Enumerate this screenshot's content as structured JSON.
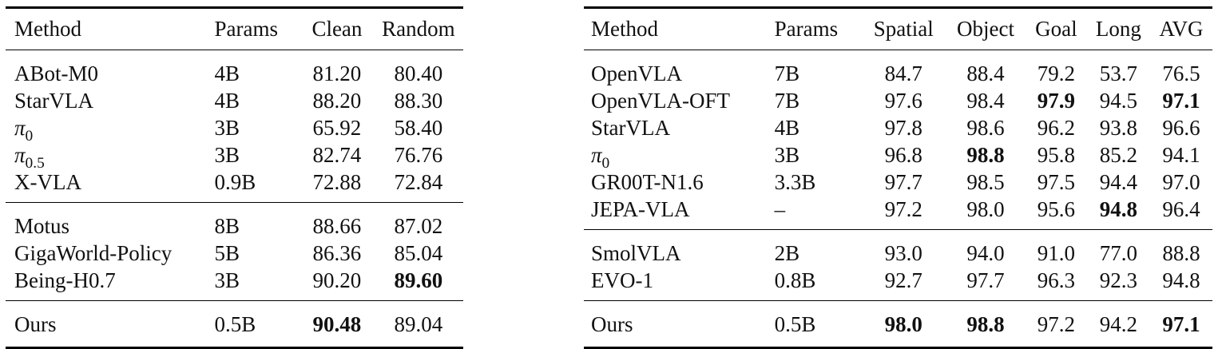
{
  "left_table": {
    "headers": [
      "Method",
      "Params",
      "Clean",
      "Random"
    ],
    "groups": [
      [
        {
          "method": "ABot-M0",
          "params": "4B",
          "clean": "81.20",
          "random": "80.40"
        },
        {
          "method": "StarVLA",
          "params": "4B",
          "clean": "88.20",
          "random": "88.30"
        },
        {
          "method": "π",
          "method_sub": "0",
          "params": "3B",
          "clean": "65.92",
          "random": "58.40"
        },
        {
          "method": "π",
          "method_sub": "0.5",
          "params": "3B",
          "clean": "82.74",
          "random": "76.76"
        },
        {
          "method": "X-VLA",
          "params": "0.9B",
          "clean": "72.88",
          "random": "72.84"
        }
      ],
      [
        {
          "method": "Motus",
          "params": "8B",
          "clean": "88.66",
          "random": "87.02"
        },
        {
          "method": "GigaWorld-Policy",
          "params": "5B",
          "clean": "86.36",
          "random": "85.04"
        },
        {
          "method": "Being-H0.7",
          "params": "3B",
          "clean": "90.20",
          "random": "89.60"
        }
      ],
      [
        {
          "method": "Ours",
          "params": "0.5B",
          "clean": "90.48",
          "random": "89.04"
        }
      ]
    ]
  },
  "right_table": {
    "headers": [
      "Method",
      "Params",
      "Spatial",
      "Object",
      "Goal",
      "Long",
      "AVG"
    ],
    "groups": [
      [
        {
          "method": "OpenVLA",
          "params": "7B",
          "spatial": "84.7",
          "object": "88.4",
          "goal": "79.2",
          "long": "53.7",
          "avg": "76.5"
        },
        {
          "method": "OpenVLA-OFT",
          "params": "7B",
          "spatial": "97.6",
          "object": "98.4",
          "goal": "97.9",
          "long": "94.5",
          "avg": "97.1"
        },
        {
          "method": "StarVLA",
          "params": "4B",
          "spatial": "97.8",
          "object": "98.6",
          "goal": "96.2",
          "long": "93.8",
          "avg": "96.6"
        },
        {
          "method": "π",
          "method_sub": "0",
          "params": "3B",
          "spatial": "96.8",
          "object": "98.8",
          "goal": "95.8",
          "long": "85.2",
          "avg": "94.1"
        },
        {
          "method": "GR00T-N1.6",
          "params": "3.3B",
          "spatial": "97.7",
          "object": "98.5",
          "goal": "97.5",
          "long": "94.4",
          "avg": "97.0"
        },
        {
          "method": "JEPA-VLA",
          "params": "–",
          "spatial": "97.2",
          "object": "98.0",
          "goal": "95.6",
          "long": "94.8",
          "avg": "96.4"
        }
      ],
      [
        {
          "method": "SmolVLA",
          "params": "2B",
          "spatial": "93.0",
          "object": "94.0",
          "goal": "91.0",
          "long": "77.0",
          "avg": "88.8"
        },
        {
          "method": "EVO-1",
          "params": "0.8B",
          "spatial": "92.7",
          "object": "97.7",
          "goal": "96.3",
          "long": "92.3",
          "avg": "94.8"
        }
      ],
      [
        {
          "method": "Ours",
          "params": "0.5B",
          "spatial": "98.0",
          "object": "98.8",
          "goal": "97.2",
          "long": "94.2",
          "avg": "97.1"
        }
      ]
    ]
  }
}
